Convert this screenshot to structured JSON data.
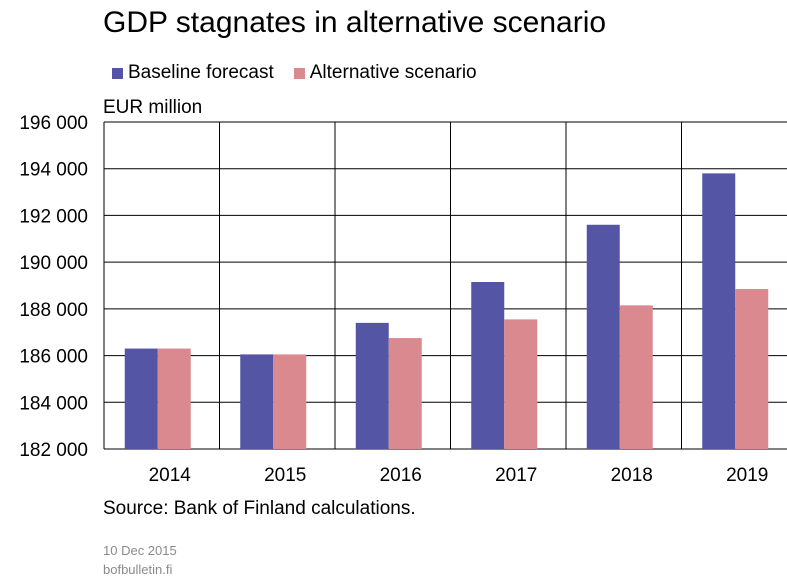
{
  "chart_data": {
    "type": "bar",
    "title": "GDP stagnates in alternative scenario",
    "ylabel": "EUR million",
    "xlabel": "",
    "categories": [
      "2014",
      "2015",
      "2016",
      "2017",
      "2018",
      "2019"
    ],
    "series": [
      {
        "name": "Baseline forecast",
        "color": "#5555a5",
        "values": [
          186300,
          186050,
          187400,
          189150,
          191600,
          193800
        ]
      },
      {
        "name": "Alternative scenario",
        "color": "#da8a8e",
        "values": [
          186300,
          186050,
          186750,
          187550,
          188150,
          188850
        ]
      }
    ],
    "ylim": [
      182000,
      196000
    ],
    "yticks": [
      182000,
      184000,
      186000,
      188000,
      190000,
      192000,
      194000,
      196000
    ],
    "ytick_labels": [
      "182 000",
      "184 000",
      "186 000",
      "188 000",
      "190 000",
      "192 000",
      "194 000",
      "196 000"
    ],
    "grid": true,
    "legend": "top-left"
  },
  "footer": {
    "source": "Source: Bank of Finland calculations.",
    "date": "10 Dec 2015",
    "site": "bofbulletin.fi"
  }
}
